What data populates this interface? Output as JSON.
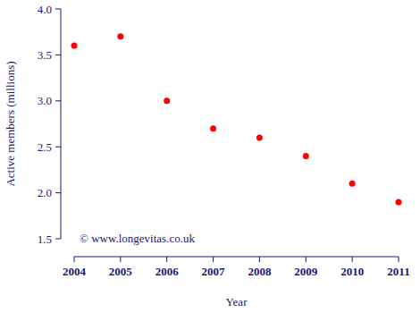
{
  "chart_data": {
    "type": "scatter",
    "x_label": "Year",
    "y_label": "Active members (millions)",
    "annotation": "© www.longevitas.co.uk",
    "x": [
      2004,
      2005,
      2006,
      2007,
      2008,
      2009,
      2010,
      2011
    ],
    "values": [
      3.6,
      3.7,
      3.0,
      2.7,
      2.6,
      2.4,
      2.1,
      1.9
    ],
    "color": "#ff0000",
    "marker": "circle",
    "grid": false,
    "xlim": [
      2004,
      2011
    ],
    "xticks": [
      2004,
      2005,
      2006,
      2007,
      2008,
      2009,
      2010,
      2011
    ],
    "ylim": [
      1.5,
      4.0
    ],
    "yticks": [
      1.5,
      {
        "value": 2.0,
        "label": "2.0"
      },
      2.5,
      {
        "value": 3.0,
        "label": "3.0"
      },
      3.5,
      {
        "value": 4.0,
        "label": "4.0"
      }
    ]
  }
}
